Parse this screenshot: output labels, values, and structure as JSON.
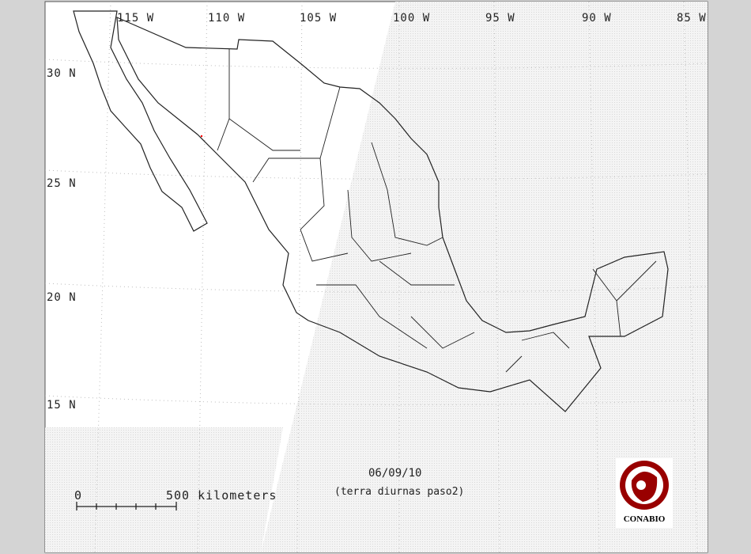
{
  "map": {
    "longitude_labels": [
      "115 W",
      "110 W",
      "105 W",
      "100 W",
      "95 W",
      "90 W",
      "85 W"
    ],
    "latitude_labels": [
      "30 N",
      "25 N",
      "20 N",
      "15 N"
    ],
    "date": "06/09/10",
    "subtitle": "(terra diurnas paso2)",
    "scale_bar": {
      "start_label": "0",
      "end_label": "500 kilometers"
    },
    "logo": {
      "text": "CONABIO",
      "color": "#990000"
    },
    "colors": {
      "background": "#d4d4d4",
      "map_area": "#ffffff",
      "no_coverage": "#ececec",
      "outline": "#222222",
      "hotspot": "#ff0000"
    }
  }
}
